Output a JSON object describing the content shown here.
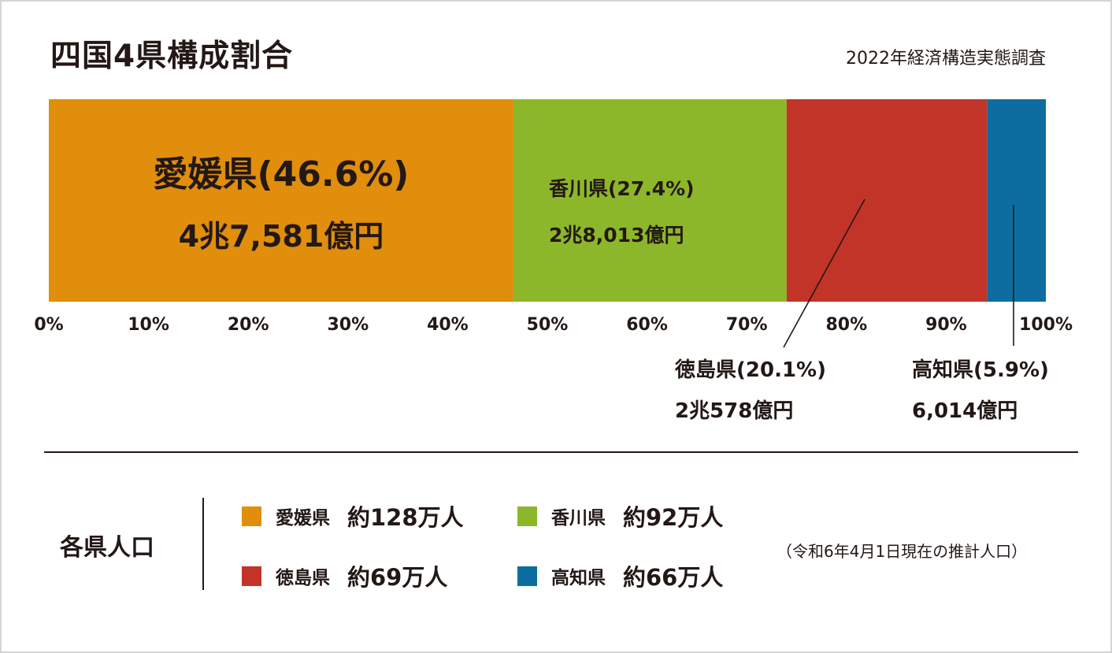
{
  "title": "四国4県構成割合",
  "source": "2022年経済構造実態調査",
  "chart_data": {
    "type": "bar",
    "orientation": "horizontal-stacked",
    "categories": [
      "愛媛県",
      "香川県",
      "徳島県",
      "高知県"
    ],
    "values": [
      46.6,
      27.4,
      20.1,
      5.9
    ],
    "percent_labels": [
      "(46.6%)",
      "(27.4%)",
      "(20.1%)",
      "(5.9%)"
    ],
    "amount_labels": [
      "4兆7,581億円",
      "2兆8,013億円",
      "2兆578億円",
      "6,014億円"
    ],
    "xlim": [
      0,
      100
    ],
    "ticks": [
      "0%",
      "10%",
      "20%",
      "30%",
      "40%",
      "50%",
      "60%",
      "70%",
      "80%",
      "90%",
      "100%"
    ],
    "grid": false,
    "colors": [
      "#E08E0B",
      "#8DB72A",
      "#C23427",
      "#0E6DA0"
    ]
  },
  "population": {
    "heading": "各県人口",
    "items": [
      {
        "name": "愛媛県",
        "value": "約128万人",
        "color": "#E08E0B"
      },
      {
        "name": "香川県",
        "value": "約92万人",
        "color": "#8DB72A"
      },
      {
        "name": "徳島県",
        "value": "約69万人",
        "color": "#C23427"
      },
      {
        "name": "高知県",
        "value": "約66万人",
        "color": "#0E6DA0"
      }
    ],
    "note": "（令和6年4月1日現在の推計人口）"
  }
}
